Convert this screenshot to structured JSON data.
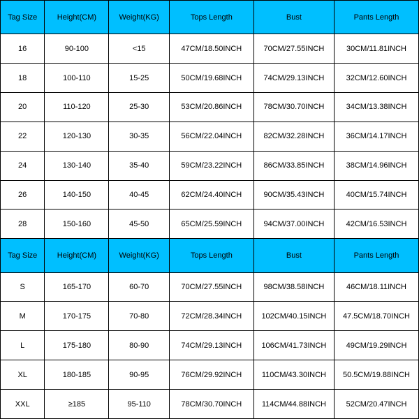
{
  "table": {
    "header_bg": "#00bfff",
    "cell_bg": "#ffffff",
    "border_color": "#000000",
    "text_color": "#000000",
    "headers1": {
      "tag": "Tag Size",
      "height": "Height(CM)",
      "weight": "Weight(KG)",
      "tops": "Tops Length",
      "bust": "Bust",
      "pants": "Pants Length"
    },
    "rows1": [
      {
        "tag": "16",
        "height": "90-100",
        "weight": "<15",
        "tops": "47CM/18.50INCH",
        "bust": "70CM/27.55INCH",
        "pants": "30CM/11.81INCH"
      },
      {
        "tag": "18",
        "height": "100-110",
        "weight": "15-25",
        "tops": "50CM/19.68INCH",
        "bust": "74CM/29.13INCH",
        "pants": "32CM/12.60INCH"
      },
      {
        "tag": "20",
        "height": "110-120",
        "weight": "25-30",
        "tops": "53CM/20.86INCH",
        "bust": "78CM/30.70INCH",
        "pants": "34CM/13.38INCH"
      },
      {
        "tag": "22",
        "height": "120-130",
        "weight": "30-35",
        "tops": "56CM/22.04INCH",
        "bust": "82CM/32.28INCH",
        "pants": "36CM/14.17INCH"
      },
      {
        "tag": "24",
        "height": "130-140",
        "weight": "35-40",
        "tops": "59CM/23.22INCH",
        "bust": "86CM/33.85INCH",
        "pants": "38CM/14.96INCH"
      },
      {
        "tag": "26",
        "height": "140-150",
        "weight": "40-45",
        "tops": "62CM/24.40INCH",
        "bust": "90CM/35.43INCH",
        "pants": "40CM/15.74INCH"
      },
      {
        "tag": "28",
        "height": "150-160",
        "weight": "45-50",
        "tops": "65CM/25.59INCH",
        "bust": "94CM/37.00INCH",
        "pants": "42CM/16.53INCH"
      }
    ],
    "headers2": {
      "tag": "Tag Size",
      "height": "Height(CM)",
      "weight": "Weight(KG)",
      "tops": "Tops Length",
      "bust": "Bust",
      "pants": "Pants Length"
    },
    "rows2": [
      {
        "tag": "S",
        "height": "165-170",
        "weight": "60-70",
        "tops": "70CM/27.55INCH",
        "bust": "98CM/38.58INCH",
        "pants": "46CM/18.11INCH"
      },
      {
        "tag": "M",
        "height": "170-175",
        "weight": "70-80",
        "tops": "72CM/28.34INCH",
        "bust": "102CM/40.15INCH",
        "pants": "47.5CM/18.70INCH"
      },
      {
        "tag": "L",
        "height": "175-180",
        "weight": "80-90",
        "tops": "74CM/29.13INCH",
        "bust": "106CM/41.73INCH",
        "pants": "49CM/19.29INCH"
      },
      {
        "tag": "XL",
        "height": "180-185",
        "weight": "90-95",
        "tops": "76CM/29.92INCH",
        "bust": "110CM/43.30INCH",
        "pants": "50.5CM/19.88INCH"
      },
      {
        "tag": "XXL",
        "height": "≥185",
        "weight": "95-110",
        "tops": "78CM/30.70INCH",
        "bust": "114CM/44.88INCH",
        "pants": "52CM/20.47INCH"
      }
    ]
  }
}
